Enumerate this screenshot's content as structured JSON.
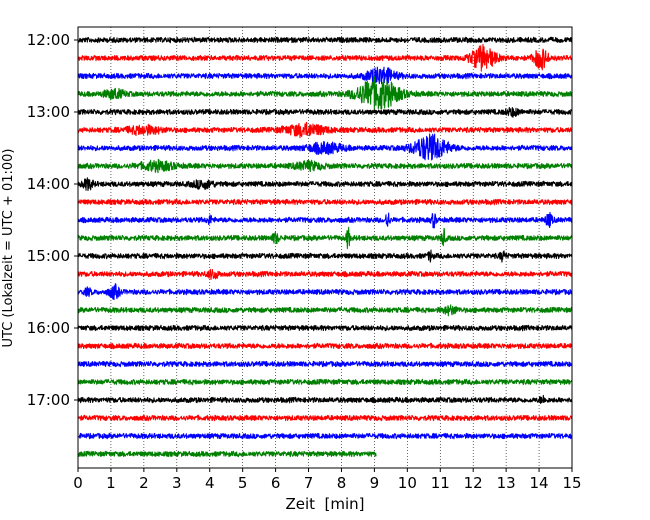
{
  "chart_data": {
    "type": "line",
    "title": "",
    "xlabel": "Zeit  [min]",
    "ylabel": "UTC (Lokalzeit = UTC + 01:00)",
    "xlim": [
      0,
      15
    ],
    "x_ticks": [
      "0",
      "1",
      "2",
      "3",
      "4",
      "5",
      "6",
      "7",
      "8",
      "9",
      "10",
      "11",
      "12",
      "13",
      "14",
      "15"
    ],
    "y_ticks": [
      {
        "label": "12:00",
        "trace": 0
      },
      {
        "label": "13:00",
        "trace": 4
      },
      {
        "label": "14:00",
        "trace": 8
      },
      {
        "label": "15:00",
        "trace": 12
      },
      {
        "label": "16:00",
        "trace": 16
      },
      {
        "label": "17:00",
        "trace": 20
      }
    ],
    "grid": "vertical-dotted",
    "colors": [
      "#000000",
      "#ff0000",
      "#0000ff",
      "#008000"
    ],
    "trace_minutes": 15,
    "traces": [
      {
        "start": "12:00",
        "color": "#000000",
        "end_min": 15,
        "events": []
      },
      {
        "start": "12:15",
        "color": "#ff0000",
        "end_min": 15,
        "events": [
          [
            12.3,
            2.3,
            0.35
          ],
          [
            14.05,
            2.0,
            0.2
          ]
        ]
      },
      {
        "start": "12:30",
        "color": "#0000ff",
        "end_min": 15,
        "events": [
          [
            9.2,
            1.6,
            0.4
          ]
        ]
      },
      {
        "start": "12:45",
        "color": "#008000",
        "end_min": 15,
        "events": [
          [
            9.1,
            3.0,
            0.6
          ],
          [
            1.1,
            0.8,
            0.3
          ]
        ]
      },
      {
        "start": "13:00",
        "color": "#000000",
        "end_min": 15,
        "events": [
          [
            13.2,
            0.6,
            0.2
          ]
        ]
      },
      {
        "start": "13:15",
        "color": "#ff0000",
        "end_min": 15,
        "events": [
          [
            2.0,
            0.7,
            0.5
          ],
          [
            6.9,
            1.1,
            0.6
          ]
        ]
      },
      {
        "start": "13:30",
        "color": "#0000ff",
        "end_min": 15,
        "events": [
          [
            7.5,
            0.9,
            0.5
          ],
          [
            10.7,
            2.4,
            0.5
          ]
        ]
      },
      {
        "start": "13:45",
        "color": "#008000",
        "end_min": 15,
        "events": [
          [
            2.4,
            0.8,
            0.5
          ],
          [
            7.0,
            0.7,
            0.4
          ]
        ]
      },
      {
        "start": "14:00",
        "color": "#000000",
        "end_min": 15,
        "events": [
          [
            0.3,
            0.9,
            0.15
          ],
          [
            3.8,
            0.7,
            0.3
          ]
        ]
      },
      {
        "start": "14:15",
        "color": "#ff0000",
        "end_min": 15,
        "events": []
      },
      {
        "start": "14:30",
        "color": "#0000ff",
        "end_min": 15,
        "events": [
          [
            9.4,
            2.0,
            0.05
          ],
          [
            10.8,
            1.4,
            0.06
          ],
          [
            14.3,
            1.2,
            0.1
          ],
          [
            4.0,
            0.7,
            0.08
          ]
        ]
      },
      {
        "start": "14:45",
        "color": "#008000",
        "end_min": 15,
        "events": [
          [
            8.2,
            2.1,
            0.05
          ],
          [
            11.1,
            1.6,
            0.06
          ],
          [
            6.0,
            0.9,
            0.1
          ]
        ]
      },
      {
        "start": "15:00",
        "color": "#000000",
        "end_min": 15,
        "events": [
          [
            10.7,
            1.0,
            0.06
          ],
          [
            12.9,
            0.8,
            0.08
          ]
        ]
      },
      {
        "start": "15:15",
        "color": "#ff0000",
        "end_min": 15,
        "events": [
          [
            4.1,
            0.8,
            0.15
          ]
        ]
      },
      {
        "start": "15:30",
        "color": "#0000ff",
        "end_min": 15,
        "events": [
          [
            1.1,
            1.2,
            0.15
          ],
          [
            0.3,
            0.6,
            0.1
          ]
        ]
      },
      {
        "start": "15:45",
        "color": "#008000",
        "end_min": 15,
        "events": [
          [
            11.3,
            0.7,
            0.2
          ]
        ]
      },
      {
        "start": "16:00",
        "color": "#000000",
        "end_min": 15,
        "events": []
      },
      {
        "start": "16:15",
        "color": "#ff0000",
        "end_min": 15,
        "events": []
      },
      {
        "start": "16:30",
        "color": "#0000ff",
        "end_min": 15,
        "events": []
      },
      {
        "start": "16:45",
        "color": "#008000",
        "end_min": 15,
        "events": []
      },
      {
        "start": "17:00",
        "color": "#000000",
        "end_min": 15,
        "events": [
          [
            14.1,
            0.6,
            0.08
          ]
        ]
      },
      {
        "start": "17:15",
        "color": "#ff0000",
        "end_min": 15,
        "events": []
      },
      {
        "start": "17:30",
        "color": "#0000ff",
        "end_min": 15,
        "events": []
      },
      {
        "start": "17:45",
        "color": "#008000",
        "end_min": 9.05,
        "events": []
      }
    ]
  }
}
